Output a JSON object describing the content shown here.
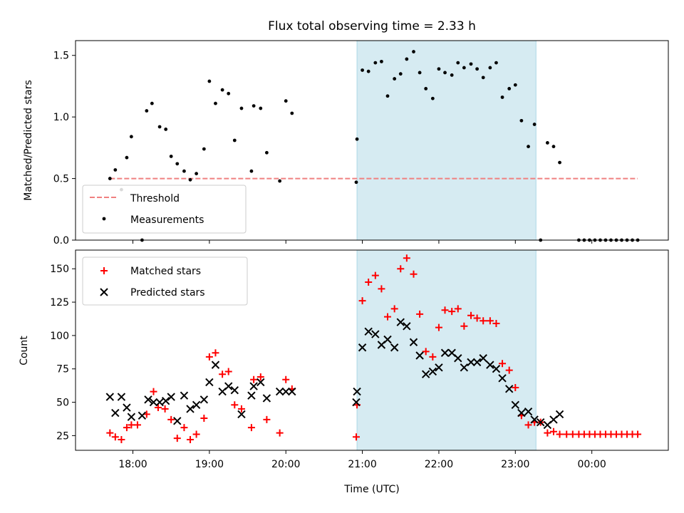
{
  "title": "Flux total observing time = 2.33 h",
  "xlabel": "Time (UTC)",
  "colors": {
    "threshold": "#f08080",
    "measurements": "#000000",
    "matched": "#ff0000",
    "predicted": "#000000",
    "span_fill": "#add8e6"
  },
  "chart_data": [
    {
      "type": "scatter",
      "panel": "top",
      "ylabel": "Matched/Predicted stars",
      "xlim_hours": [
        17.25,
        25.0
      ],
      "ylim": [
        0,
        1.62
      ],
      "x_ticks": [
        {
          "h": 18,
          "label": "18:00"
        },
        {
          "h": 19,
          "label": "19:00"
        },
        {
          "h": 20,
          "label": "20:00"
        },
        {
          "h": 21,
          "label": "21:00"
        },
        {
          "h": 22,
          "label": "22:00"
        },
        {
          "h": 23,
          "label": "23:00"
        },
        {
          "h": 24,
          "label": "00:00"
        }
      ],
      "x_tick_labels_visible": false,
      "y_ticks": [
        {
          "v": 0,
          "label": "0.0"
        },
        {
          "v": 0.5,
          "label": "0.5"
        },
        {
          "v": 1.0,
          "label": "1.0"
        },
        {
          "v": 1.5,
          "label": "1.5"
        }
      ],
      "span": [
        20.93,
        23.27
      ],
      "threshold": {
        "name": "Threshold",
        "value": 0.5,
        "x_range": [
          17.7,
          24.6
        ]
      },
      "series": [
        {
          "name": "Measurements",
          "points": [
            [
              17.7,
              0.5
            ],
            [
              17.77,
              0.57
            ],
            [
              17.85,
              0.41
            ],
            [
              17.92,
              0.67
            ],
            [
              17.98,
              0.84
            ],
            [
              18.12,
              0.0
            ],
            [
              18.18,
              1.05
            ],
            [
              18.25,
              1.11
            ],
            [
              18.35,
              0.92
            ],
            [
              18.43,
              0.9
            ],
            [
              18.5,
              0.68
            ],
            [
              18.58,
              0.62
            ],
            [
              18.67,
              0.56
            ],
            [
              18.75,
              0.49
            ],
            [
              18.83,
              0.54
            ],
            [
              18.93,
              0.74
            ],
            [
              19.0,
              1.29
            ],
            [
              19.08,
              1.11
            ],
            [
              19.17,
              1.22
            ],
            [
              19.25,
              1.19
            ],
            [
              19.33,
              0.81
            ],
            [
              19.42,
              1.07
            ],
            [
              19.55,
              0.56
            ],
            [
              19.58,
              1.09
            ],
            [
              19.67,
              1.07
            ],
            [
              19.75,
              0.71
            ],
            [
              19.92,
              0.48
            ],
            [
              20.0,
              1.13
            ],
            [
              20.08,
              1.03
            ],
            [
              20.92,
              0.47
            ],
            [
              20.93,
              0.82
            ],
            [
              21.0,
              1.38
            ],
            [
              21.08,
              1.37
            ],
            [
              21.17,
              1.44
            ],
            [
              21.25,
              1.45
            ],
            [
              21.33,
              1.17
            ],
            [
              21.42,
              1.31
            ],
            [
              21.5,
              1.35
            ],
            [
              21.58,
              1.47
            ],
            [
              21.67,
              1.53
            ],
            [
              21.75,
              1.36
            ],
            [
              21.83,
              1.23
            ],
            [
              21.92,
              1.15
            ],
            [
              22.0,
              1.39
            ],
            [
              22.08,
              1.36
            ],
            [
              22.17,
              1.34
            ],
            [
              22.25,
              1.44
            ],
            [
              22.33,
              1.4
            ],
            [
              22.42,
              1.43
            ],
            [
              22.5,
              1.39
            ],
            [
              22.58,
              1.32
            ],
            [
              22.67,
              1.4
            ],
            [
              22.75,
              1.44
            ],
            [
              22.83,
              1.16
            ],
            [
              22.92,
              1.23
            ],
            [
              23.0,
              1.26
            ],
            [
              23.08,
              0.97
            ],
            [
              23.17,
              0.76
            ],
            [
              23.25,
              0.94
            ],
            [
              23.33,
              0.0
            ],
            [
              23.42,
              0.79
            ],
            [
              23.5,
              0.76
            ],
            [
              23.58,
              0.63
            ],
            [
              23.83,
              0.0
            ],
            [
              23.9,
              0.0
            ],
            [
              23.97,
              0.0
            ],
            [
              24.04,
              0.0
            ],
            [
              24.11,
              0.0
            ],
            [
              24.18,
              0.0
            ],
            [
              24.25,
              0.0
            ],
            [
              24.32,
              0.0
            ],
            [
              24.39,
              0.0
            ],
            [
              24.46,
              0.0
            ],
            [
              24.53,
              0.0
            ],
            [
              24.6,
              0.0
            ]
          ]
        }
      ],
      "legend": {
        "location": "lower left",
        "entries": [
          "Threshold",
          "Measurements"
        ]
      }
    },
    {
      "type": "scatter",
      "panel": "bottom",
      "ylabel": "Count",
      "xlim_hours": [
        17.25,
        25.0
      ],
      "ylim": [
        14,
        164
      ],
      "x_ticks": [
        {
          "h": 18,
          "label": "18:00"
        },
        {
          "h": 19,
          "label": "19:00"
        },
        {
          "h": 20,
          "label": "20:00"
        },
        {
          "h": 21,
          "label": "21:00"
        },
        {
          "h": 22,
          "label": "22:00"
        },
        {
          "h": 23,
          "label": "23:00"
        },
        {
          "h": 24,
          "label": "00:00"
        }
      ],
      "x_tick_labels_visible": true,
      "y_ticks": [
        {
          "v": 25,
          "label": "25"
        },
        {
          "v": 50,
          "label": "50"
        },
        {
          "v": 75,
          "label": "75"
        },
        {
          "v": 100,
          "label": "100"
        },
        {
          "v": 125,
          "label": "125"
        },
        {
          "v": 150,
          "label": "150"
        }
      ],
      "span": [
        20.93,
        23.27
      ],
      "series": [
        {
          "name": "Matched stars",
          "marker": "plus",
          "points": [
            [
              17.7,
              27
            ],
            [
              17.77,
              24
            ],
            [
              17.85,
              22
            ],
            [
              17.92,
              31
            ],
            [
              17.98,
              33
            ],
            [
              18.06,
              33
            ],
            [
              18.18,
              41
            ],
            [
              18.27,
              58
            ],
            [
              18.33,
              46
            ],
            [
              18.42,
              45
            ],
            [
              18.5,
              37
            ],
            [
              18.58,
              23
            ],
            [
              18.67,
              31
            ],
            [
              18.75,
              22
            ],
            [
              18.83,
              26
            ],
            [
              18.93,
              38
            ],
            [
              19.0,
              84
            ],
            [
              19.08,
              87
            ],
            [
              19.17,
              71
            ],
            [
              19.25,
              73
            ],
            [
              19.33,
              48
            ],
            [
              19.42,
              45
            ],
            [
              19.55,
              31
            ],
            [
              19.58,
              67
            ],
            [
              19.67,
              69
            ],
            [
              19.75,
              37
            ],
            [
              19.92,
              27
            ],
            [
              20.0,
              67
            ],
            [
              20.08,
              60
            ],
            [
              20.92,
              24
            ],
            [
              20.93,
              48
            ],
            [
              21.0,
              126
            ],
            [
              21.08,
              140
            ],
            [
              21.17,
              145
            ],
            [
              21.25,
              135
            ],
            [
              21.33,
              114
            ],
            [
              21.42,
              120
            ],
            [
              21.5,
              150
            ],
            [
              21.58,
              158
            ],
            [
              21.67,
              146
            ],
            [
              21.75,
              116
            ],
            [
              21.83,
              88
            ],
            [
              21.92,
              84
            ],
            [
              22.0,
              106
            ],
            [
              22.08,
              119
            ],
            [
              22.17,
              118
            ],
            [
              22.25,
              120
            ],
            [
              22.33,
              107
            ],
            [
              22.42,
              115
            ],
            [
              22.5,
              113
            ],
            [
              22.58,
              111
            ],
            [
              22.67,
              111
            ],
            [
              22.75,
              109
            ],
            [
              22.83,
              79
            ],
            [
              22.92,
              74
            ],
            [
              23.0,
              61
            ],
            [
              23.08,
              40
            ],
            [
              23.17,
              33
            ],
            [
              23.25,
              35
            ],
            [
              23.33,
              35
            ],
            [
              23.42,
              27
            ],
            [
              23.5,
              28
            ],
            [
              23.58,
              26
            ],
            [
              23.67,
              26
            ],
            [
              23.75,
              26
            ],
            [
              23.83,
              26
            ],
            [
              23.9,
              26
            ],
            [
              23.97,
              26
            ],
            [
              24.04,
              26
            ],
            [
              24.11,
              26
            ],
            [
              24.18,
              26
            ],
            [
              24.25,
              26
            ],
            [
              24.32,
              26
            ],
            [
              24.39,
              26
            ],
            [
              24.46,
              26
            ],
            [
              24.53,
              26
            ],
            [
              24.6,
              26
            ]
          ]
        },
        {
          "name": "Predicted stars",
          "marker": "x",
          "points": [
            [
              17.7,
              54
            ],
            [
              17.77,
              42
            ],
            [
              17.85,
              54
            ],
            [
              17.92,
              46
            ],
            [
              17.98,
              39
            ],
            [
              18.12,
              40
            ],
            [
              18.2,
              52
            ],
            [
              18.27,
              50
            ],
            [
              18.35,
              50
            ],
            [
              18.43,
              51
            ],
            [
              18.5,
              54
            ],
            [
              18.58,
              36
            ],
            [
              18.67,
              55
            ],
            [
              18.75,
              45
            ],
            [
              18.83,
              48
            ],
            [
              18.93,
              52
            ],
            [
              19.0,
              65
            ],
            [
              19.08,
              78
            ],
            [
              19.17,
              58
            ],
            [
              19.25,
              62
            ],
            [
              19.33,
              59
            ],
            [
              19.42,
              41
            ],
            [
              19.55,
              55
            ],
            [
              19.58,
              62
            ],
            [
              19.67,
              65
            ],
            [
              19.75,
              53
            ],
            [
              19.92,
              58
            ],
            [
              20.0,
              58
            ],
            [
              20.08,
              58
            ],
            [
              20.92,
              50
            ],
            [
              20.93,
              58
            ],
            [
              21.0,
              91
            ],
            [
              21.08,
              103
            ],
            [
              21.17,
              101
            ],
            [
              21.25,
              93
            ],
            [
              21.33,
              97
            ],
            [
              21.42,
              91
            ],
            [
              21.5,
              110
            ],
            [
              21.58,
              107
            ],
            [
              21.67,
              95
            ],
            [
              21.75,
              85
            ],
            [
              21.83,
              71
            ],
            [
              21.92,
              73
            ],
            [
              22.0,
              76
            ],
            [
              22.08,
              87
            ],
            [
              22.17,
              87
            ],
            [
              22.25,
              83
            ],
            [
              22.33,
              76
            ],
            [
              22.42,
              80
            ],
            [
              22.5,
              80
            ],
            [
              22.58,
              83
            ],
            [
              22.67,
              78
            ],
            [
              22.75,
              75
            ],
            [
              22.83,
              68
            ],
            [
              22.92,
              60
            ],
            [
              23.0,
              48
            ],
            [
              23.08,
              42
            ],
            [
              23.17,
              43
            ],
            [
              23.25,
              37
            ],
            [
              23.33,
              35
            ],
            [
              23.42,
              33
            ],
            [
              23.5,
              37
            ],
            [
              23.58,
              41
            ]
          ]
        }
      ],
      "legend": {
        "location": "upper left",
        "entries": [
          "Matched stars",
          "Predicted stars"
        ]
      }
    }
  ]
}
